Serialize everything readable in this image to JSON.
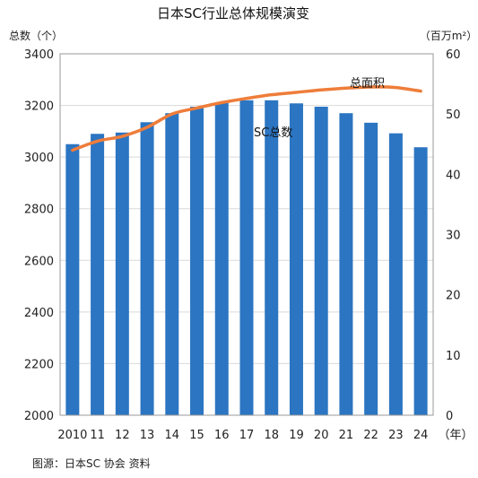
{
  "chart_data": {
    "type": "bar",
    "title": "日本SC行业总体规模演变",
    "left_axis_label": "总数（个）",
    "right_axis_label": "（百万m²）",
    "x_unit_label": "（年）",
    "categories": [
      "2010",
      "11",
      "12",
      "13",
      "14",
      "15",
      "16",
      "17",
      "18",
      "19",
      "20",
      "21",
      "22",
      "23",
      "24"
    ],
    "left_ylim": [
      2000,
      3400
    ],
    "left_ticks": [
      2000,
      2200,
      2400,
      2600,
      2800,
      3000,
      3200,
      3400
    ],
    "right_ylim": [
      0,
      60
    ],
    "right_ticks": [
      0,
      10,
      20,
      30,
      40,
      50,
      60
    ],
    "series": [
      {
        "name": "SC总数",
        "type": "bar",
        "axis": "left",
        "color": "#2b75c2",
        "values": [
          3050,
          3090,
          3095,
          3135,
          3170,
          3195,
          3210,
          3220,
          3220,
          3208,
          3195,
          3170,
          3133,
          3092,
          3038
        ]
      },
      {
        "name": "总面积",
        "type": "line",
        "axis": "right",
        "color": "#ee7d3a",
        "values": [
          44.0,
          45.5,
          46.3,
          47.8,
          50.0,
          51.0,
          51.9,
          52.6,
          53.2,
          53.6,
          54.0,
          54.3,
          54.5,
          54.4,
          53.8
        ]
      }
    ],
    "grid": true,
    "source": "图源：日本SC 协会  资料"
  }
}
